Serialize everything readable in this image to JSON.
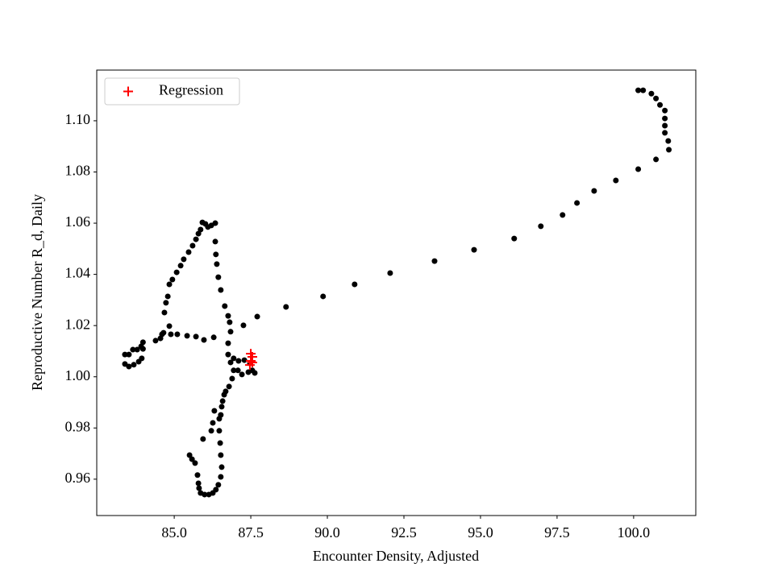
{
  "chart_data": {
    "type": "scatter",
    "x_label": "Encounter Density, Adjusted",
    "y_label": "Reproductive Number R_d, Daily",
    "xlim": [
      82.47,
      102.03
    ],
    "ylim": [
      0.9458,
      1.1198
    ],
    "xticks": [
      {
        "value": 85,
        "label": "85.0"
      },
      87.5,
      {
        "value": 90,
        "label": "90.0"
      },
      92.5,
      {
        "value": 95,
        "label": "95.0"
      },
      97.5,
      {
        "value": 100,
        "label": "100.0"
      }
    ],
    "yticks": [
      0.96,
      0.98,
      {
        "value": 1,
        "label": "1.00"
      },
      1.02,
      1.04,
      1.06,
      1.08,
      {
        "value": 1.1,
        "label": "1.10"
      }
    ],
    "grid": false,
    "legend": "upper left",
    "series": [
      {
        "color": "#000000",
        "marker": "dot",
        "x": [
          100.15,
          100.31,
          100.58,
          100.73,
          100.86,
          101.02,
          101.02,
          101.02,
          101.02,
          101.13,
          101.15,
          100.73,
          100.15,
          99.42,
          98.71,
          98.15,
          97.68,
          96.97,
          96.1,
          94.79,
          93.5,
          92.05,
          90.89,
          89.86,
          88.65,
          87.71,
          87.26,
          85.92,
          86.02,
          86.1,
          86.21,
          86.34,
          85.86,
          85.79,
          85.71,
          85.6,
          85.47,
          85.31,
          85.21,
          85.08,
          84.94,
          84.84,
          84.79,
          84.73,
          84.68,
          86.34,
          86.36,
          86.39,
          86.44,
          86.52,
          86.65,
          86.76,
          86.81,
          86.84,
          86.76,
          86.76,
          86.84,
          84.84,
          84.65,
          84.55,
          84.39,
          84.6,
          84.89,
          85.1,
          85.42,
          85.71,
          85.97,
          86.29,
          83.98,
          83.92,
          83.79,
          83.65,
          83.52,
          83.39,
          83.39,
          83.52,
          83.68,
          83.84,
          83.94,
          83.98,
          86.94,
          87.1,
          87.29,
          87.47,
          87.55,
          87.63,
          87.42,
          87.21,
          87.08,
          86.94,
          86.89,
          86.79,
          86.68,
          86.63,
          86.58,
          86.55,
          86.52,
          86.47,
          86.47,
          86.5,
          86.52,
          86.55,
          86.52,
          86.44,
          86.36,
          86.26,
          86.13,
          85.99,
          85.86,
          85.81,
          85.79,
          85.76,
          85.68,
          85.58,
          85.5,
          85.94,
          86.21,
          86.26,
          86.31
        ],
        "values": [
          1.1119,
          1.1119,
          1.1106,
          1.1087,
          1.1062,
          1.104,
          1.1009,
          1.0981,
          1.0953,
          1.0921,
          1.0887,
          1.0849,
          1.0811,
          1.0767,
          1.0726,
          1.0679,
          1.0632,
          1.0588,
          1.054,
          1.0496,
          1.0452,
          1.0405,
          1.0361,
          1.0314,
          1.0273,
          1.0235,
          1.0201,
          1.0603,
          1.0597,
          1.0585,
          1.0591,
          1.06,
          1.0575,
          1.0559,
          1.0537,
          1.0512,
          1.0487,
          1.0459,
          1.0434,
          1.0408,
          1.038,
          1.0361,
          1.0314,
          1.0289,
          1.0251,
          1.0528,
          1.0478,
          1.044,
          1.0389,
          1.0339,
          1.0276,
          1.0238,
          1.0213,
          1.0176,
          1.0131,
          1.0087,
          1.0056,
          1.0198,
          1.0172,
          1.015,
          1.0141,
          1.0166,
          1.0166,
          1.0166,
          1.016,
          1.0157,
          1.0144,
          1.0154,
          1.0135,
          1.0119,
          1.0106,
          1.0106,
          1.0087,
          1.0087,
          1.005,
          1.004,
          1.0047,
          1.0059,
          1.0072,
          1.0109,
          1.0072,
          1.0062,
          1.0065,
          1.0053,
          1.0025,
          1.0015,
          1.0018,
          1.0009,
          1.0025,
          1.0025,
          0.9993,
          0.9962,
          0.9943,
          0.993,
          0.9905,
          0.9883,
          0.9851,
          0.9836,
          0.9789,
          0.9741,
          0.9694,
          0.9647,
          0.9609,
          0.9578,
          0.9559,
          0.9546,
          0.954,
          0.954,
          0.9546,
          0.9565,
          0.9584,
          0.9616,
          0.9663,
          0.9678,
          0.9694,
          0.9757,
          0.9789,
          0.982,
          0.9867
        ]
      },
      {
        "name": "Regression",
        "color": "#ff0000",
        "marker": "plus",
        "x": [
          87.5,
          87.55,
          87.5,
          87.55,
          87.47
        ],
        "values": [
          1.009,
          1.0078,
          1.0062,
          1.0056,
          1.0046
        ]
      }
    ]
  }
}
